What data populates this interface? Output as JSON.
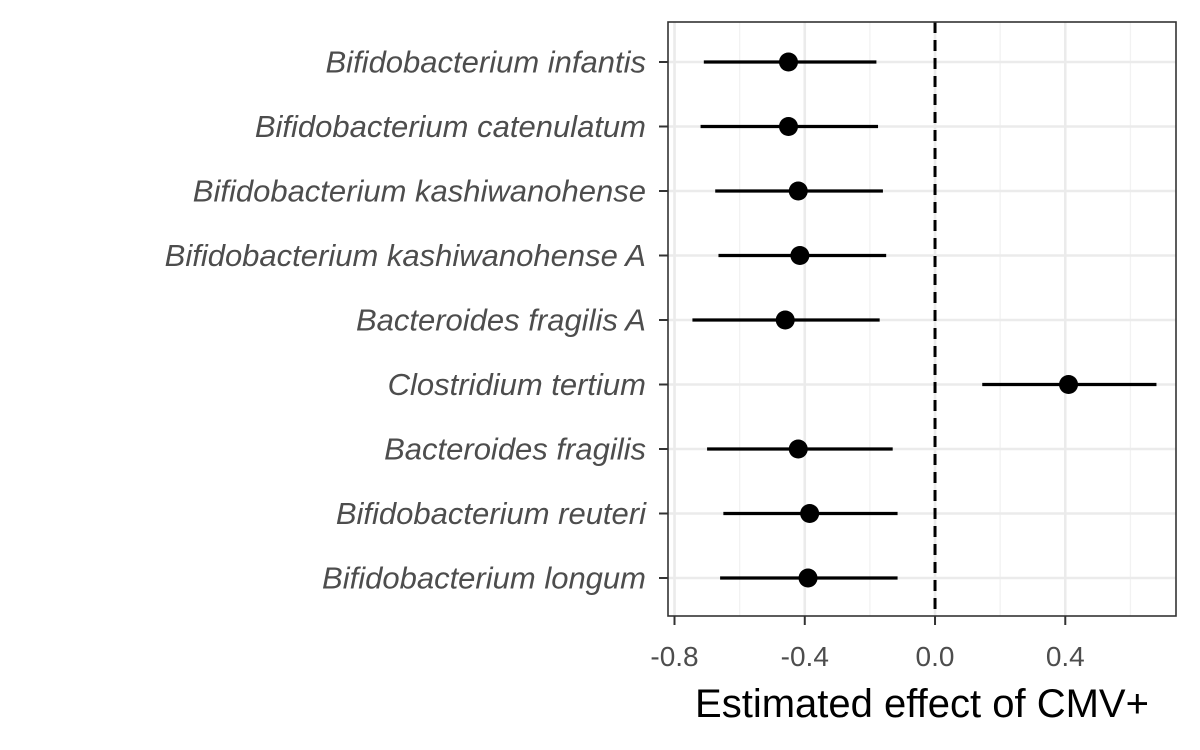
{
  "chart_data": {
    "type": "scatter",
    "subtype": "forest-plot",
    "title": "",
    "xlabel": "Estimated effect of CMV+",
    "ylabel": "",
    "xlim": [
      -0.82,
      0.74
    ],
    "x_ticks": [
      -0.8,
      -0.4,
      0.0,
      0.4
    ],
    "x_tick_labels": [
      "-0.8",
      "-0.4",
      "0.0",
      "0.4"
    ],
    "reference_line": {
      "x": 0.0,
      "style": "dashed"
    },
    "grid": true,
    "legend": "none",
    "colors": {
      "point": "#000000",
      "errorbar": "#000000",
      "grid": "#ebebeb",
      "panel_border": "#333333",
      "tick_label": "#4d4d4d"
    },
    "categories": [
      "Bifidobacterium infantis",
      "Bifidobacterium catenulatum",
      "Bifidobacterium kashiwanohense",
      "Bifidobacterium kashiwanohense A",
      "Bacteroides fragilis A",
      "Clostridium tertium",
      "Bacteroides fragilis",
      "Bifidobacterium reuteri",
      "Bifidobacterium longum"
    ],
    "estimates": [
      -0.45,
      -0.45,
      -0.42,
      -0.415,
      -0.46,
      0.41,
      -0.42,
      -0.385,
      -0.39
    ],
    "ci_lower": [
      -0.71,
      -0.72,
      -0.675,
      -0.665,
      -0.745,
      0.145,
      -0.7,
      -0.65,
      -0.66
    ],
    "ci_upper": [
      -0.18,
      -0.175,
      -0.16,
      -0.15,
      -0.17,
      0.68,
      -0.13,
      -0.115,
      -0.115
    ]
  }
}
